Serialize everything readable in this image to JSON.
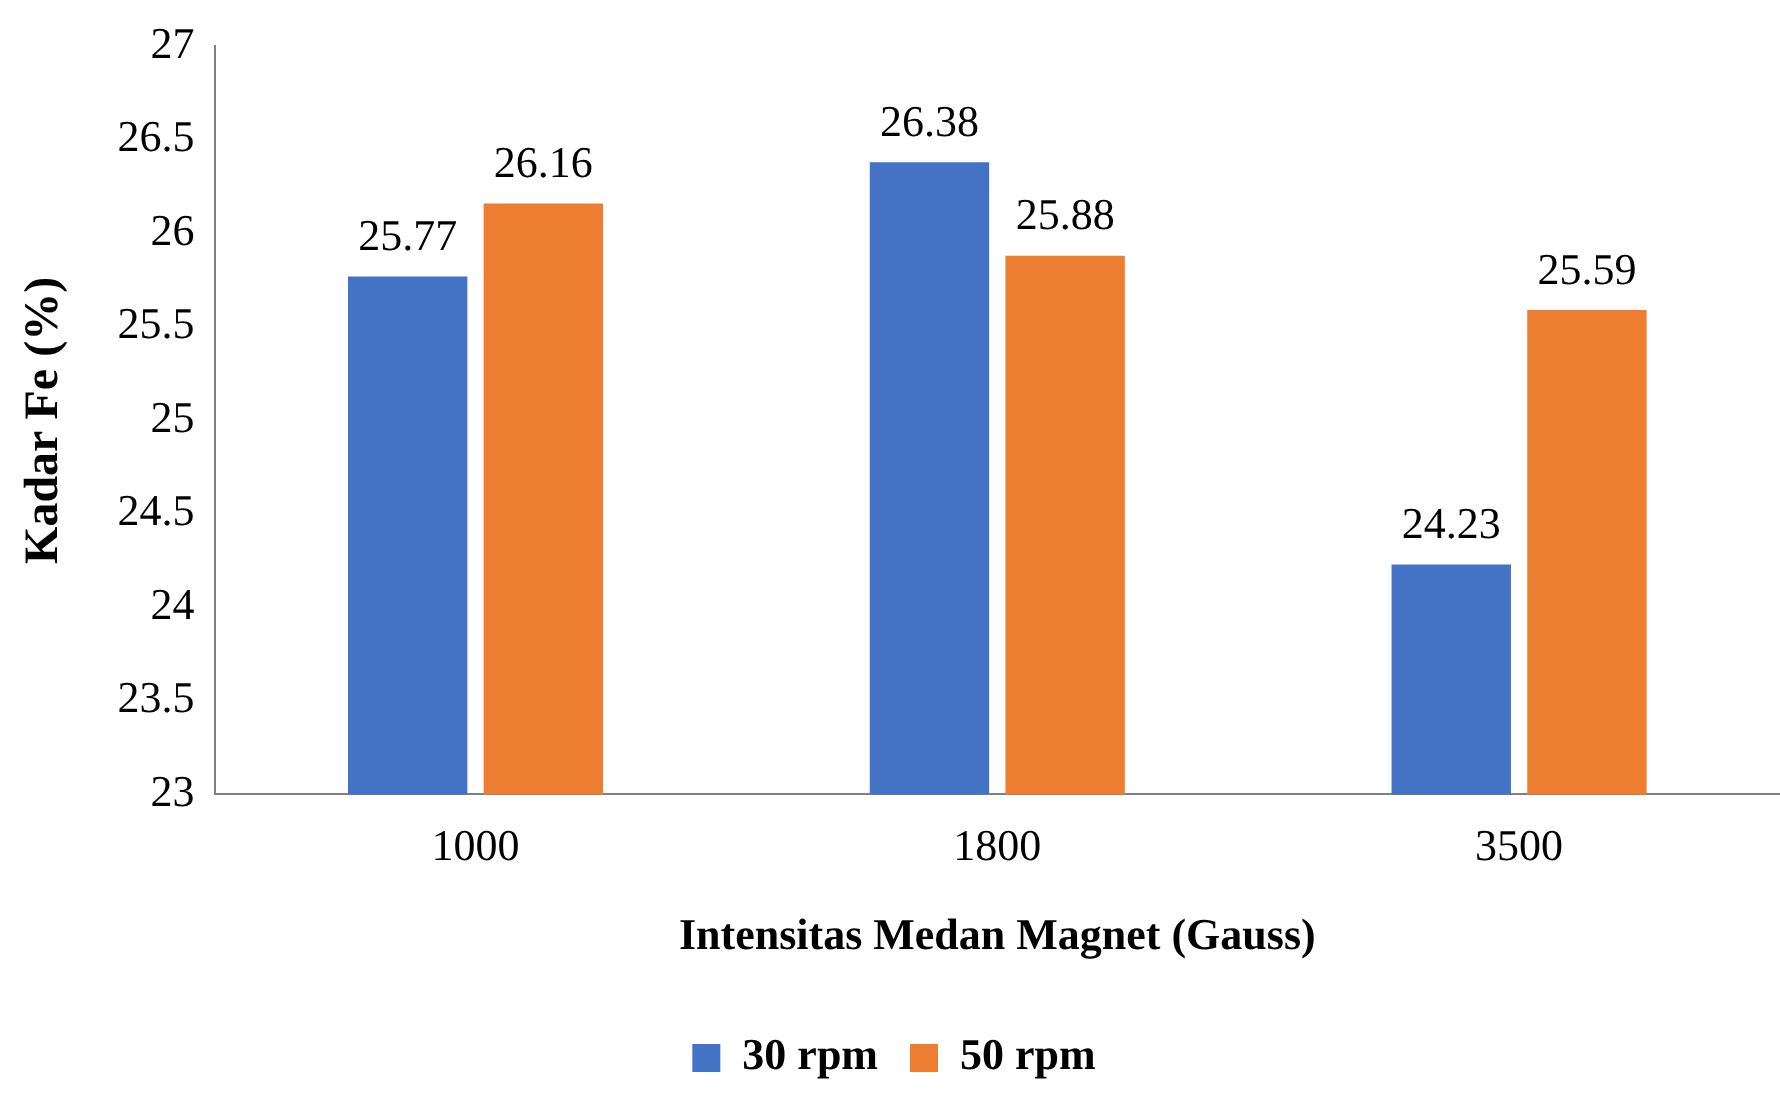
{
  "chart_data": {
    "type": "bar",
    "xlabel": "Intensitas Medan Magnet (Gauss)",
    "ylabel": "Kadar Fe (%)",
    "categories": [
      "1000",
      "1800",
      "3500"
    ],
    "series": [
      {
        "name": "30 rpm",
        "color": "#4472c4",
        "values": [
          25.77,
          26.38,
          24.23
        ]
      },
      {
        "name": "50 rpm",
        "color": "#ed7d31",
        "values": [
          26.16,
          25.88,
          25.59
        ]
      }
    ],
    "ylim": [
      23,
      27
    ],
    "yticks": [
      23,
      23.5,
      24,
      24.5,
      25,
      25.5,
      26,
      26.5,
      27
    ],
    "grid": false,
    "legend": "bottom",
    "data_labels": true
  }
}
